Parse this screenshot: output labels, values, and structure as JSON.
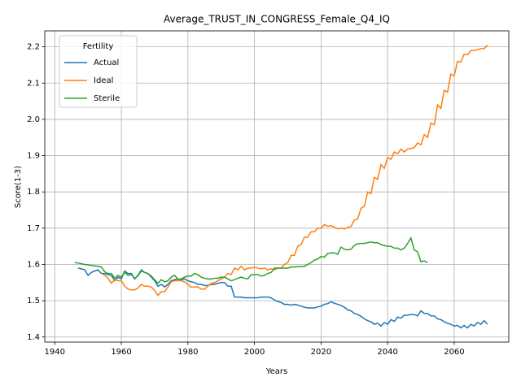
{
  "chart_data": {
    "type": "line",
    "title": "Average_TRUST_IN_CONGRESS_Female_Q4_IQ",
    "xlabel": "Years",
    "ylabel": "Score(1-3)",
    "legend_title": "Fertility",
    "legend": "upper left",
    "grid": true,
    "xlim": [
      1937,
      2076.4
    ],
    "ylim": [
      1.386,
      2.244
    ],
    "xticks": [
      1940,
      1960,
      1980,
      2000,
      2020,
      2040,
      2060
    ],
    "yticks": [
      1.4,
      1.5,
      1.6,
      1.7,
      1.8,
      1.9,
      {
        "value": 2,
        "label": "2.0"
      },
      2.1,
      2.2
    ],
    "x": [
      1946,
      1947,
      1948,
      1949,
      1950,
      1951,
      1952,
      1953,
      1954,
      1955,
      1956,
      1957,
      1958,
      1959,
      1960,
      1961,
      1962,
      1963,
      1964,
      1965,
      1966,
      1967,
      1968,
      1969,
      1970,
      1971,
      1972,
      1973,
      1974,
      1975,
      1976,
      1977,
      1978,
      1979,
      1980,
      1981,
      1982,
      1983,
      1984,
      1985,
      1986,
      1987,
      1988,
      1989,
      1990,
      1991,
      1992,
      1993,
      1994,
      1995,
      1996,
      1997,
      1998,
      1999,
      2000,
      2001,
      2002,
      2003,
      2004,
      2005,
      2006,
      2007,
      2008,
      2009,
      2010,
      2011,
      2012,
      2013,
      2014,
      2015,
      2016,
      2017,
      2018,
      2019,
      2020,
      2021,
      2022,
      2023,
      2024,
      2025,
      2026,
      2027,
      2028,
      2029,
      2030,
      2031,
      2032,
      2033,
      2034,
      2035,
      2036,
      2037,
      2038,
      2039,
      2040,
      2041,
      2042,
      2043,
      2044,
      2045,
      2046,
      2047,
      2048,
      2049,
      2050,
      2051,
      2052,
      2053,
      2054,
      2055,
      2056,
      2057,
      2058,
      2059,
      2060,
      2061,
      2062,
      2063,
      2064,
      2065,
      2066,
      2067,
      2068,
      2069,
      2070
    ],
    "series": [
      {
        "name": "Actual",
        "color": "#1f77b4",
        "values": [
          null,
          1.59,
          1.588,
          1.585,
          1.57,
          1.578,
          1.582,
          1.585,
          1.575,
          1.575,
          1.572,
          1.57,
          1.555,
          1.565,
          1.56,
          1.582,
          1.575,
          1.575,
          1.56,
          1.57,
          1.585,
          1.578,
          1.575,
          1.565,
          1.555,
          1.54,
          1.545,
          1.538,
          1.545,
          1.555,
          1.558,
          1.56,
          1.558,
          1.56,
          1.555,
          1.552,
          1.55,
          1.545,
          1.545,
          1.542,
          1.542,
          1.545,
          1.545,
          1.548,
          1.55,
          1.55,
          1.54,
          1.54,
          1.51,
          1.51,
          1.51,
          1.508,
          1.508,
          1.508,
          1.508,
          1.508,
          1.51,
          1.51,
          1.51,
          1.508,
          1.502,
          1.498,
          1.495,
          1.49,
          1.49,
          1.488,
          1.49,
          1.488,
          1.485,
          1.482,
          1.48,
          1.48,
          1.48,
          1.483,
          1.485,
          1.49,
          1.492,
          1.497,
          1.493,
          1.49,
          1.487,
          1.482,
          1.475,
          1.472,
          1.465,
          1.462,
          1.457,
          1.45,
          1.445,
          1.442,
          1.435,
          1.438,
          1.43,
          1.44,
          1.435,
          1.448,
          1.443,
          1.455,
          1.452,
          1.46,
          1.46,
          1.462,
          1.462,
          1.458,
          1.472,
          1.465,
          1.465,
          1.458,
          1.458,
          1.45,
          1.448,
          1.442,
          1.438,
          1.435,
          1.43,
          1.432,
          1.425,
          1.432,
          1.425,
          1.435,
          1.43,
          1.44,
          1.435,
          1.445,
          1.435
        ]
      },
      {
        "name": "Ideal",
        "color": "#ff7f0e",
        "values": [
          null,
          null,
          null,
          null,
          null,
          null,
          null,
          null,
          1.575,
          1.57,
          1.562,
          1.548,
          1.558,
          1.555,
          1.555,
          1.54,
          1.532,
          1.53,
          1.53,
          1.535,
          1.545,
          1.54,
          1.54,
          1.538,
          1.528,
          1.515,
          1.525,
          1.525,
          1.538,
          1.552,
          1.555,
          1.555,
          1.555,
          1.552,
          1.545,
          1.537,
          1.538,
          1.538,
          1.532,
          1.532,
          1.54,
          1.548,
          1.55,
          1.555,
          1.56,
          1.565,
          1.575,
          1.572,
          1.59,
          1.585,
          1.595,
          1.585,
          1.59,
          1.59,
          1.592,
          1.59,
          1.588,
          1.59,
          1.585,
          1.588,
          1.585,
          1.59,
          1.59,
          1.6,
          1.605,
          1.625,
          1.625,
          1.65,
          1.655,
          1.675,
          1.675,
          1.69,
          1.69,
          1.7,
          1.7,
          1.71,
          1.705,
          1.707,
          1.703,
          1.698,
          1.7,
          1.698,
          1.702,
          1.705,
          1.722,
          1.725,
          1.755,
          1.76,
          1.8,
          1.795,
          1.84,
          1.835,
          1.875,
          1.865,
          1.895,
          1.89,
          1.91,
          1.905,
          1.918,
          1.91,
          1.918,
          1.92,
          1.922,
          1.935,
          1.93,
          1.958,
          1.95,
          1.99,
          1.985,
          2.04,
          2.03,
          2.08,
          2.075,
          2.125,
          2.12,
          2.16,
          2.158,
          2.18,
          2.178,
          2.19,
          2.19,
          2.192,
          2.195,
          2.195,
          2.205
        ]
      },
      {
        "name": "Sterile",
        "color": "#2ca02c",
        "values": [
          1.605,
          1.604,
          1.602,
          1.6,
          1.599,
          1.597,
          1.596,
          1.595,
          1.593,
          1.58,
          1.575,
          1.575,
          1.562,
          1.57,
          1.565,
          1.578,
          1.57,
          1.572,
          1.562,
          1.568,
          1.582,
          1.578,
          1.575,
          1.568,
          1.558,
          1.548,
          1.558,
          1.552,
          1.555,
          1.565,
          1.57,
          1.56,
          1.56,
          1.565,
          1.568,
          1.568,
          1.575,
          1.572,
          1.565,
          1.562,
          1.56,
          1.56,
          1.562,
          1.562,
          1.565,
          1.565,
          1.56,
          1.555,
          1.558,
          1.562,
          1.565,
          1.562,
          1.56,
          1.572,
          1.572,
          1.572,
          1.568,
          1.57,
          1.575,
          1.578,
          1.59,
          1.59,
          1.59,
          1.59,
          1.59,
          1.593,
          1.593,
          1.594,
          1.594,
          1.595,
          1.6,
          1.605,
          1.612,
          1.615,
          1.622,
          1.62,
          1.63,
          1.632,
          1.632,
          1.628,
          1.648,
          1.642,
          1.64,
          1.642,
          1.652,
          1.657,
          1.658,
          1.658,
          1.66,
          1.662,
          1.66,
          1.66,
          1.655,
          1.652,
          1.65,
          1.65,
          1.645,
          1.645,
          1.64,
          1.645,
          1.658,
          1.673,
          1.64,
          1.635,
          1.607,
          1.61,
          1.605,
          null,
          null,
          null,
          null,
          null,
          null,
          null,
          null,
          null,
          null,
          null,
          null,
          null,
          null,
          null,
          null,
          null,
          null
        ]
      }
    ]
  }
}
